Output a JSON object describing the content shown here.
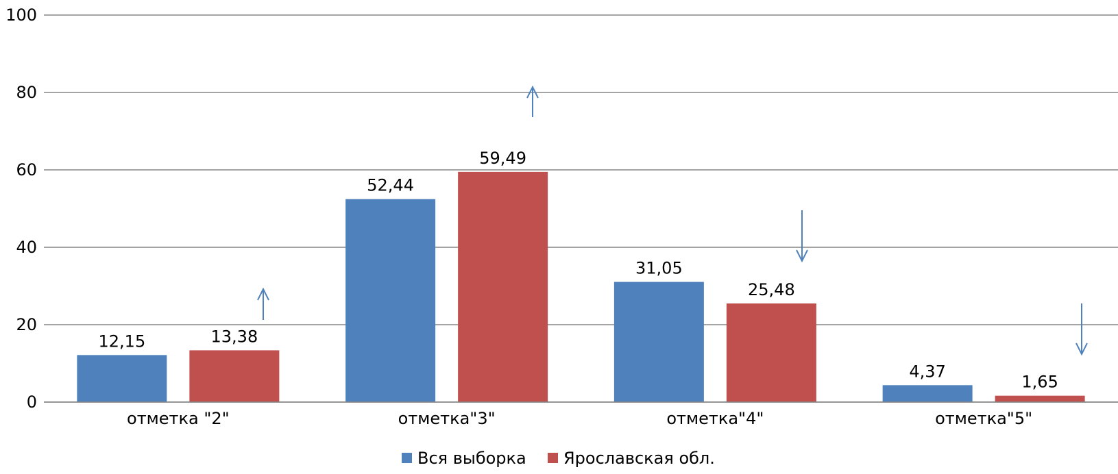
{
  "chart_data": {
    "type": "bar",
    "categories": [
      "отметка \"2\"",
      "отметка\"3\"",
      "отметка\"4\"",
      "отметка\"5\""
    ],
    "series": [
      {
        "name": "Вся выборка",
        "color": "#4F81BD",
        "values": [
          12.15,
          52.44,
          31.05,
          4.37
        ],
        "labels": [
          "12,15",
          "52,44",
          "31,05",
          "4,37"
        ]
      },
      {
        "name": "Ярославская обл.",
        "color": "#C0504D",
        "values": [
          13.38,
          59.49,
          25.48,
          1.65
        ],
        "labels": [
          "13,38",
          "59,49",
          "25,48",
          "1,65"
        ]
      }
    ],
    "ylim": [
      0,
      100
    ],
    "yticks": [
      "0",
      "20",
      "40",
      "60",
      "80",
      "100"
    ],
    "grid": true,
    "legend": "bottom",
    "annotations": [
      {
        "type": "arrow-up-icon",
        "category_index": 0,
        "color": "#4F81BD"
      },
      {
        "type": "arrow-up-icon",
        "category_index": 1,
        "color": "#4F81BD"
      },
      {
        "type": "arrow-down-icon",
        "category_index": 2,
        "color": "#4F81BD"
      },
      {
        "type": "arrow-down-icon",
        "category_index": 3,
        "color": "#4F81BD"
      }
    ]
  }
}
